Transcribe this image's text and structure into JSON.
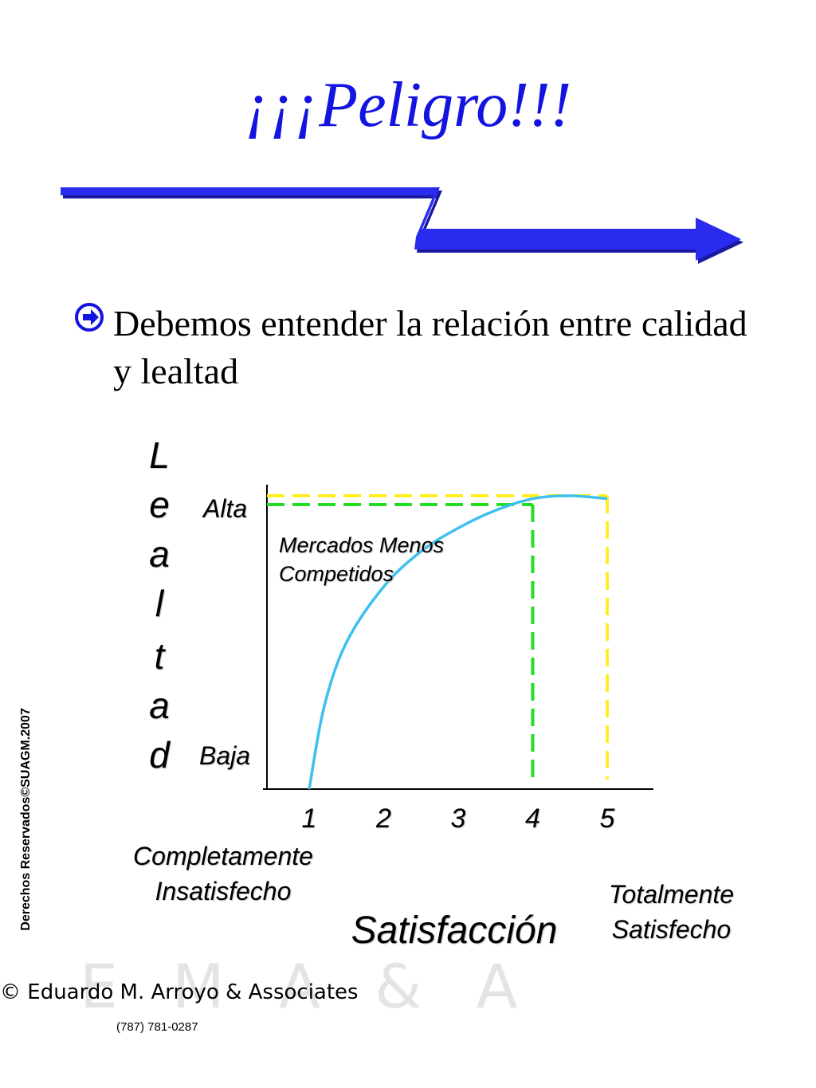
{
  "title": "¡¡¡Peligro!!!",
  "bullet": {
    "icon": "arrow-circle-icon",
    "text": "Debemos entender la relación entre calidad y lealtad"
  },
  "chart_data": {
    "type": "line",
    "title": "",
    "xlabel": "Satisfacción",
    "ylabel_letters": [
      "L",
      "e",
      "a",
      "l",
      "t",
      "a",
      "d"
    ],
    "x_ticks": [
      "1",
      "2",
      "3",
      "4",
      "5"
    ],
    "xlim": [
      0.5,
      5.7
    ],
    "y_levels": {
      "high": "Alta",
      "low": "Baja"
    },
    "ylim": [
      0,
      1
    ],
    "x_notes": {
      "left": "Completamente Insatisfecho",
      "right": "Totalmente Satisfecho"
    },
    "annotation": "Mercados Menos Competidos",
    "series": [
      {
        "color": "#3cc0ee",
        "x": [
          1.0,
          1.2,
          1.5,
          2.0,
          2.5,
          3.0,
          3.5,
          4.0,
          4.5,
          5.0
        ],
        "y": [
          0.0,
          0.28,
          0.5,
          0.69,
          0.81,
          0.89,
          0.95,
          0.99,
          1.0,
          0.99
        ]
      }
    ],
    "reference_lines": [
      {
        "x": 4,
        "y": 0.97,
        "color": "#22dd22"
      },
      {
        "x": 5,
        "y": 1.0,
        "color": "#ffee22"
      }
    ],
    "grid": false
  },
  "footer": {
    "copyright_vertical": "Derechos Reservados©SUAGM.2007",
    "watermark": "E M A & A",
    "company": "© Eduardo M. Arroyo & Associates",
    "phone": "(787) 781-0287"
  }
}
